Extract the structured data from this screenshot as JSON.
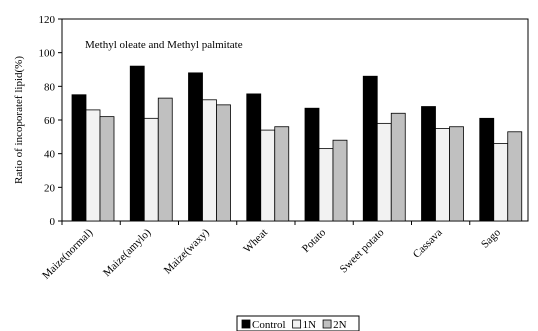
{
  "chart_data": {
    "type": "bar",
    "title": "",
    "annotation": "Methyl oleate and Methyl palmitate",
    "xlabel": "",
    "ylabel": "Ratio of incoporatef lipid(%)",
    "ylim": [
      0,
      120
    ],
    "yticks": [
      0,
      20,
      40,
      60,
      80,
      100,
      120
    ],
    "grid": false,
    "legend_position": "bottom",
    "categories": [
      "Maize(normal)",
      "Maize(amylo)",
      "Maize(waxy)",
      "Wheat",
      "Potato",
      "Sweet potato",
      "Cassava",
      "Sago"
    ],
    "series": [
      {
        "name": "Control",
        "color": "#000000",
        "values": [
          75,
          92,
          88,
          75.5,
          67,
          86,
          68,
          61
        ]
      },
      {
        "name": "1N",
        "color": "#f2f2f2",
        "values": [
          66,
          61,
          72,
          54,
          43,
          58,
          55,
          46
        ]
      },
      {
        "name": "2N",
        "color": "#c0c0c0",
        "values": [
          62,
          73,
          69,
          56,
          48,
          64,
          56,
          53
        ]
      }
    ]
  }
}
